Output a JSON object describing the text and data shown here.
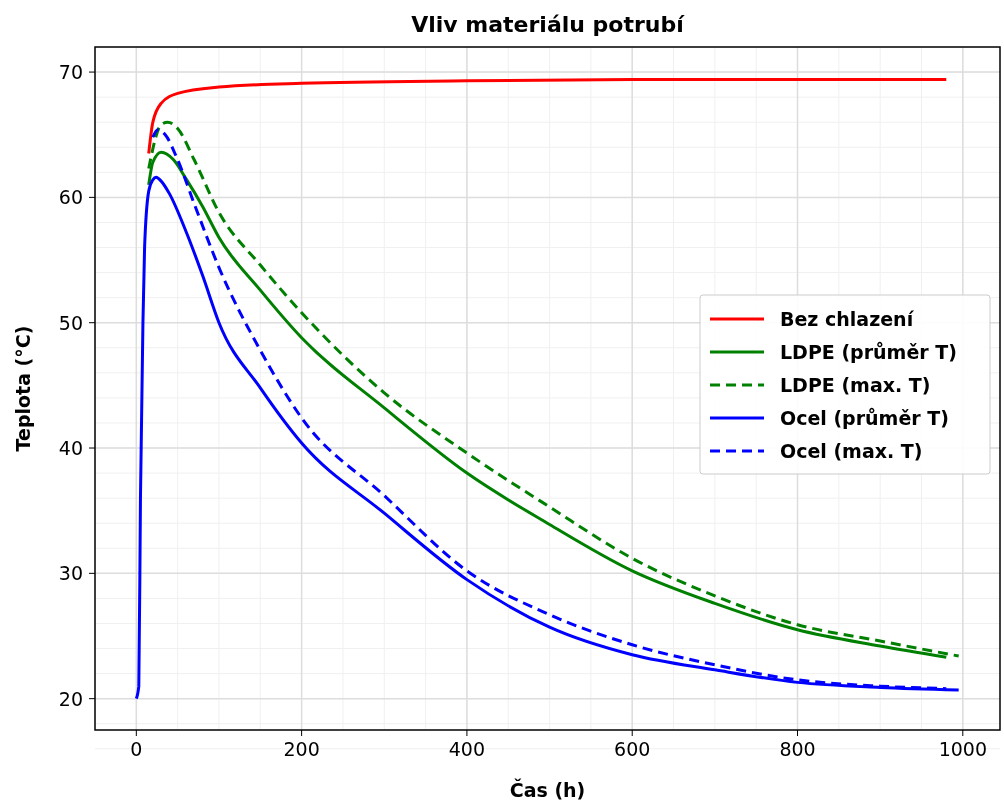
{
  "chart_data": {
    "type": "line",
    "title": "Vliv materiálu potrubí",
    "xlabel": "Čas (h)",
    "ylabel": "Teplota (°C)",
    "xlim": [
      -50,
      1045
    ],
    "ylim": [
      17.5,
      72
    ],
    "xticks": [
      0,
      200,
      400,
      600,
      800,
      1000
    ],
    "yticks": [
      20,
      30,
      40,
      50,
      60,
      70
    ],
    "grid": true,
    "legend": "right",
    "line_style": "solid",
    "series": [
      {
        "name": "Bez chlazení",
        "color": "#ff0000",
        "x": [
          15,
          20,
          30,
          50,
          100,
          200,
          400,
          600,
          800,
          980
        ],
        "values": [
          63.5,
          66,
          67.5,
          68.3,
          68.8,
          69.1,
          69.3,
          69.4,
          69.4,
          69.4
        ]
      },
      {
        "name": "LDPE (průměr T)",
        "color": "#008000",
        "x": [
          15,
          20,
          30,
          45,
          60,
          80,
          100,
          150,
          200,
          300,
          400,
          500,
          600,
          700,
          800,
          900,
          980
        ],
        "values": [
          61,
          62.8,
          63.6,
          63,
          61.5,
          59.3,
          56.8,
          52.6,
          48.8,
          43.2,
          38,
          33.9,
          30.2,
          27.6,
          25.5,
          24.2,
          23.3
        ]
      },
      {
        "name": "LDPE (max. T)",
        "color": "#008000",
        "line_style": "dashed",
        "x": [
          15,
          30,
          38,
          50,
          70,
          100,
          150,
          200,
          300,
          400,
          500,
          600,
          700,
          800,
          900,
          995
        ],
        "values": [
          62.3,
          65.8,
          66,
          65.5,
          63,
          58.8,
          54.6,
          50.8,
          44.4,
          39.6,
          35.3,
          31.2,
          28.2,
          25.9,
          24.6,
          23.4
        ]
      },
      {
        "name": "Ocel (průměr T)",
        "color": "#0000ff",
        "x": [
          0,
          3,
          5,
          8,
          10,
          15,
          20,
          24,
          30,
          40,
          60,
          80,
          100,
          150,
          200,
          300,
          400,
          500,
          600,
          700,
          800,
          900,
          995
        ],
        "values": [
          20,
          21,
          36,
          50,
          56,
          60.5,
          61.4,
          61.6,
          61.3,
          60.3,
          57.3,
          53.8,
          50,
          44.8,
          40.4,
          34.8,
          29.5,
          25.7,
          23.5,
          22.3,
          21.3,
          20.9,
          20.7
        ]
      },
      {
        "name": "Ocel (max. T)",
        "color": "#0000ff",
        "line_style": "dashed",
        "x": [
          20,
          26,
          35,
          50,
          70,
          100,
          150,
          200,
          300,
          400,
          500,
          600,
          700,
          800,
          900,
          980
        ],
        "values": [
          64.8,
          65.4,
          65,
          63,
          59.5,
          54.4,
          47.8,
          42.4,
          36.2,
          30.2,
          26.7,
          24.3,
          22.7,
          21.5,
          21,
          20.8
        ]
      }
    ]
  }
}
